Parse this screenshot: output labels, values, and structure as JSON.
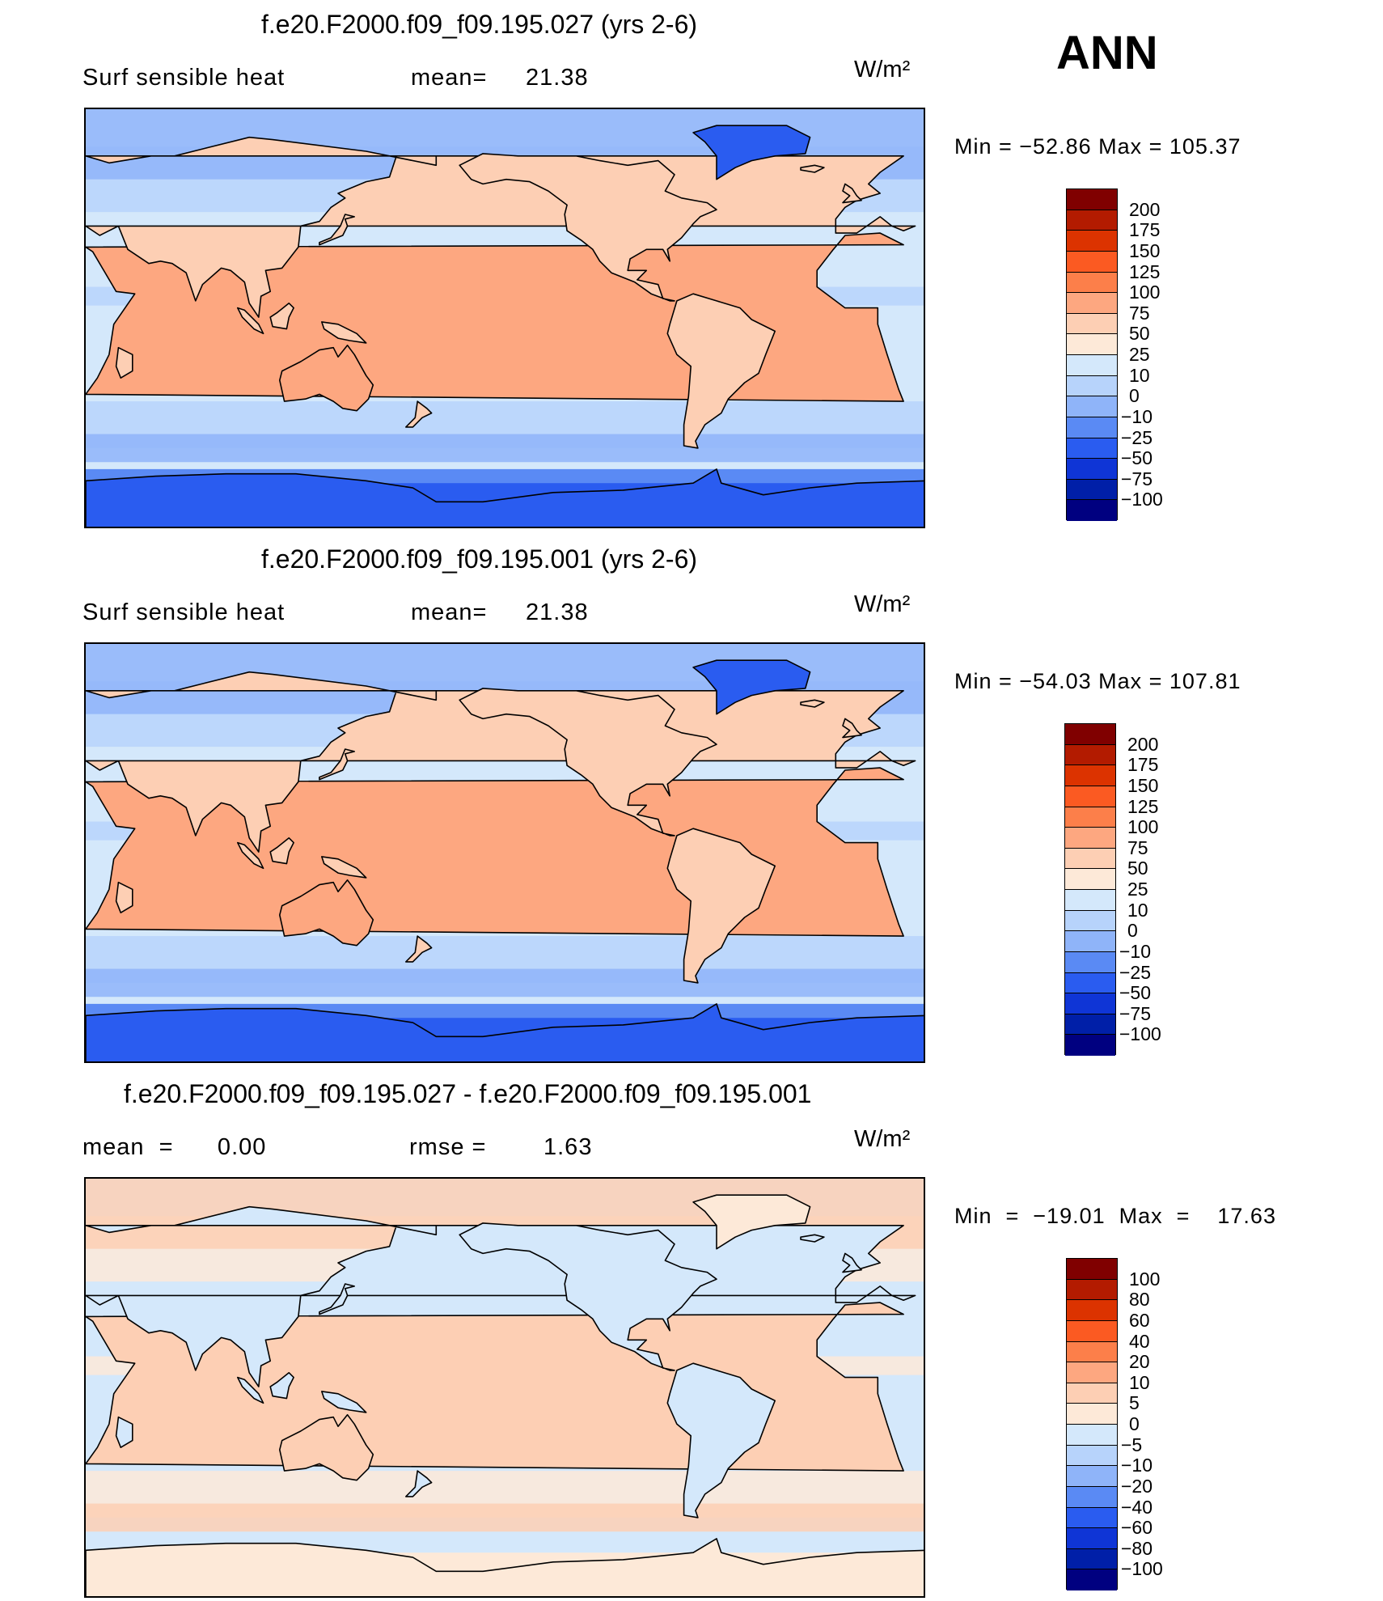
{
  "header": {
    "season": "ANN"
  },
  "panels": [
    {
      "title": "f.e20.F2000.f09_f09.195.027 (yrs 2-6)",
      "left_label": "Surf  sensible  heat",
      "stat_label": "mean=",
      "stat_value": "21.38",
      "units": "W/m²",
      "min_max": "Min  =  −52.86  Max  =  105.37",
      "colorbar": {
        "labels": [
          "200",
          "175",
          "150",
          "125",
          "100",
          "75",
          "50",
          "25",
          "10",
          "0",
          "−10",
          "−25",
          "−50",
          "−75",
          "−100"
        ],
        "colors": [
          "#800000",
          "#b31b00",
          "#dc3300",
          "#fb5a22",
          "#fc7f4a",
          "#fda780",
          "#fdcfb4",
          "#fde9d8",
          "#d4e8fb",
          "#b7d3fb",
          "#8fb4f9",
          "#5a8af4",
          "#2a5cf0",
          "#0f35d6",
          "#001fa8",
          "#000080"
        ]
      },
      "map_palette": {
        "land": "#fdcfb4",
        "land_hot": "#fda780",
        "ocean": "#d4e8fb",
        "ocean_cool": "#b7d3fb",
        "ocean_cold": "#8fb4f9",
        "polar": "#2a5cf0",
        "polar_edge": "#5a8af4"
      }
    },
    {
      "title": "f.e20.F2000.f09_f09.195.001 (yrs 2-6)",
      "left_label": "Surf  sensible  heat",
      "stat_label": "mean=",
      "stat_value": "21.38",
      "units": "W/m²",
      "min_max": "Min  =  −54.03  Max  =  107.81",
      "colorbar": {
        "labels": [
          "200",
          "175",
          "150",
          "125",
          "100",
          "75",
          "50",
          "25",
          "10",
          "0",
          "−10",
          "−25",
          "−50",
          "−75",
          "−100"
        ],
        "colors": [
          "#800000",
          "#b31b00",
          "#dc3300",
          "#fb5a22",
          "#fc7f4a",
          "#fda780",
          "#fdcfb4",
          "#fde9d8",
          "#d4e8fb",
          "#b7d3fb",
          "#8fb4f9",
          "#5a8af4",
          "#2a5cf0",
          "#0f35d6",
          "#001fa8",
          "#000080"
        ]
      },
      "map_palette": {
        "land": "#fdcfb4",
        "land_hot": "#fda780",
        "ocean": "#d4e8fb",
        "ocean_cool": "#b7d3fb",
        "ocean_cold": "#8fb4f9",
        "polar": "#2a5cf0",
        "polar_edge": "#5a8af4"
      }
    },
    {
      "title": "f.e20.F2000.f09_f09.195.027 - f.e20.F2000.f09_f09.195.001",
      "left_label": "mean  =      0.00",
      "stat_label": "rmse  =",
      "stat_value": "1.63",
      "units": "W/m²",
      "min_max": "Min  =  −19.01  Max  =    17.63",
      "colorbar": {
        "labels": [
          "100",
          "80",
          "60",
          "40",
          "20",
          "10",
          "5",
          "0",
          "−5",
          "−10",
          "−20",
          "−40",
          "−60",
          "−80",
          "−100"
        ],
        "colors": [
          "#800000",
          "#b31b00",
          "#dc3300",
          "#fb5a22",
          "#fc7f4a",
          "#fda780",
          "#fdcfb4",
          "#fde9d8",
          "#d4e8fb",
          "#b7d3fb",
          "#8fb4f9",
          "#5a8af4",
          "#2a5cf0",
          "#0f35d6",
          "#001fa8",
          "#000080"
        ]
      },
      "map_palette": {
        "land": "#d4e8fb",
        "land_hot": "#fdcfb4",
        "ocean": "#d4e8fb",
        "ocean_cool": "#fde9d8",
        "ocean_cold": "#fdcfb4",
        "polar": "#fde9d8",
        "polar_edge": "#d4e8fb"
      }
    }
  ]
}
